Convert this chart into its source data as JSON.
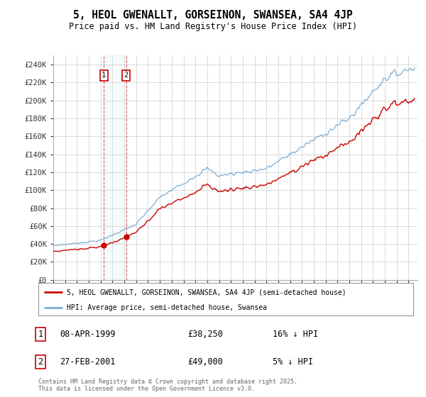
{
  "title": "5, HEOL GWENALLT, GORSEINON, SWANSEA, SA4 4JP",
  "subtitle": "Price paid vs. HM Land Registry's House Price Index (HPI)",
  "ylabel_ticks": [
    "£0",
    "£20K",
    "£40K",
    "£60K",
    "£80K",
    "£100K",
    "£120K",
    "£140K",
    "£160K",
    "£180K",
    "£200K",
    "£220K",
    "£240K"
  ],
  "ytick_values": [
    0,
    20000,
    40000,
    60000,
    80000,
    100000,
    120000,
    140000,
    160000,
    180000,
    200000,
    220000,
    240000
  ],
  "hpi_color": "#7aadd4",
  "price_color": "#cc0000",
  "transaction1_year": 1999.27,
  "transaction1_price": 38250,
  "transaction1_date": "08-APR-1999",
  "transaction1_pct": "16% ↓ HPI",
  "transaction2_year": 2001.15,
  "transaction2_price": 49000,
  "transaction2_date": "27-FEB-2001",
  "transaction2_pct": "5% ↓ HPI",
  "legend_line1": "5, HEOL GWENALLT, GORSEINON, SWANSEA, SA4 4JP (semi-detached house)",
  "legend_line2": "HPI: Average price, semi-detached house, Swansea",
  "footer": "Contains HM Land Registry data © Crown copyright and database right 2025.\nThis data is licensed under the Open Government Licence v3.0.",
  "background_color": "#ffffff",
  "grid_color": "#cccccc",
  "ylim_max": 250000
}
